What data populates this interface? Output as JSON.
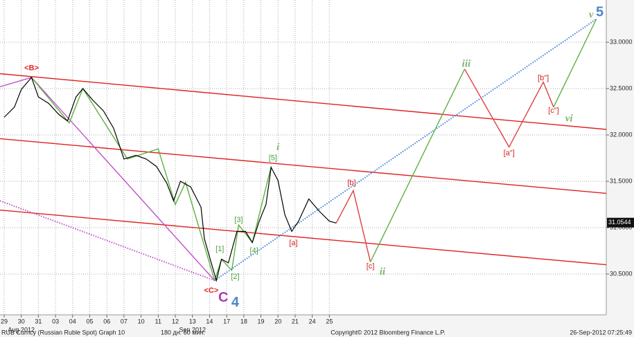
{
  "chart_data": {
    "type": "line",
    "xlim": [
      -0.243,
      35.18
    ],
    "ylim": [
      30.06,
      33.455
    ],
    "grid": true,
    "xticks": [
      {
        "value": 0,
        "label": "29"
      },
      {
        "value": 1,
        "label": "30"
      },
      {
        "value": 2,
        "label": "31"
      },
      {
        "value": 3,
        "label": "03"
      },
      {
        "value": 4,
        "label": "04"
      },
      {
        "value": 5,
        "label": "05"
      },
      {
        "value": 6,
        "label": "06"
      },
      {
        "value": 7,
        "label": "07"
      },
      {
        "value": 8,
        "label": "10"
      },
      {
        "value": 9,
        "label": "11"
      },
      {
        "value": 10,
        "label": "12"
      },
      {
        "value": 11,
        "label": "13"
      },
      {
        "value": 12,
        "label": "14"
      },
      {
        "value": 13,
        "label": "17"
      },
      {
        "value": 14,
        "label": "18"
      },
      {
        "value": 15,
        "label": "19"
      },
      {
        "value": 16,
        "label": "20"
      },
      {
        "value": 17,
        "label": "21"
      },
      {
        "value": 18,
        "label": "24"
      },
      {
        "value": 19,
        "label": "25"
      }
    ],
    "month_labels": [
      {
        "value": 1,
        "label": "Aug 2012"
      },
      {
        "value": 11,
        "label": "Sep 2012"
      }
    ],
    "yticks": [
      {
        "value": 30.5,
        "label": "30.5000"
      },
      {
        "value": 31,
        "label": "31.0000"
      },
      {
        "value": 31.5,
        "label": "31.5000"
      },
      {
        "value": 32,
        "label": "32.0000"
      },
      {
        "value": 32.5,
        "label": "32.5000"
      },
      {
        "value": 33,
        "label": "33.0000"
      }
    ],
    "last_price": 31.0544,
    "series": [
      {
        "color": "#000000",
        "x": [
          0,
          0.6,
          1.0,
          1.6,
          2.0,
          2.6,
          3.2,
          3.7,
          4.2,
          4.6,
          5.2,
          5.8,
          6.4,
          7.0,
          7.7,
          8.3,
          8.9,
          9.5,
          9.9,
          10.3,
          10.9,
          11.5,
          11.7,
          12.1,
          12.4,
          12.7,
          13.1,
          13.6,
          14.1,
          14.5,
          14.9,
          15.3,
          15.6,
          16.0,
          16.4,
          16.8,
          17.2,
          17.8,
          18.4,
          19.0,
          19.4
        ],
        "values": [
          32.19,
          32.3,
          32.49,
          32.62,
          32.41,
          32.34,
          32.22,
          32.15,
          32.41,
          32.5,
          32.37,
          32.26,
          32.07,
          31.74,
          31.78,
          31.74,
          31.66,
          31.48,
          31.29,
          31.5,
          31.44,
          31.22,
          30.88,
          30.62,
          30.43,
          30.66,
          30.62,
          30.96,
          30.96,
          30.84,
          31.07,
          31.25,
          31.65,
          31.51,
          31.14,
          30.96,
          31.07,
          31.31,
          31.18,
          31.07,
          31.05
        ]
      }
    ],
    "overlays": [
      {
        "color": "#e02020",
        "style": "solid",
        "x": [
          -0.243,
          35.18
        ],
        "y": [
          32.66,
          32.06
        ]
      },
      {
        "color": "#e02020",
        "style": "solid",
        "x": [
          -0.243,
          35.18
        ],
        "y": [
          31.96,
          31.37
        ]
      },
      {
        "color": "#e02020",
        "style": "solid",
        "x": [
          -0.243,
          35.18
        ],
        "y": [
          31.19,
          30.6
        ]
      },
      {
        "color": "#c050c8",
        "style": "solid",
        "x": [
          -0.243,
          1.6,
          12.3
        ],
        "y": [
          32.52,
          32.62,
          30.43
        ]
      },
      {
        "color": "#c050c8",
        "style": "dotted",
        "x": [
          -0.243,
          12.3
        ],
        "y": [
          31.29,
          30.43
        ]
      },
      {
        "color": "#3c7fd8",
        "style": "dotted",
        "x": [
          12.3,
          34.6
        ],
        "y": [
          30.43,
          33.25
        ]
      },
      {
        "color": "#5cb040",
        "style": "solid",
        "x": [
          1.6,
          3.8,
          4.6,
          7.2,
          9.0,
          10.0,
          10.6,
          12.3
        ],
        "y": [
          32.62,
          32.13,
          32.5,
          31.74,
          31.85,
          31.25,
          31.49,
          30.43
        ]
      },
      {
        "color": "#5cb040",
        "style": "solid",
        "x": [
          12.3,
          12.7,
          13.3,
          13.7,
          14.5,
          15.6
        ],
        "y": [
          30.43,
          30.66,
          30.54,
          31.03,
          30.84,
          31.66
        ]
      },
      {
        "color": "#e04040",
        "style": "solid",
        "x": [
          19.4,
          20.4,
          21.4
        ],
        "y": [
          31.05,
          31.4,
          30.63
        ]
      },
      {
        "color": "#5cb040",
        "style": "solid",
        "x": [
          21.4,
          26.9
        ],
        "y": [
          30.63,
          32.71
        ]
      },
      {
        "color": "#e04040",
        "style": "solid",
        "x": [
          26.9,
          29.5,
          31.5,
          32.1
        ],
        "y": [
          32.71,
          31.87,
          32.57,
          32.3
        ]
      },
      {
        "color": "#5cb040",
        "style": "solid",
        "x": [
          32.1,
          34.6
        ],
        "y": [
          32.3,
          33.25
        ]
      }
    ],
    "annotations": [
      {
        "text": "<B>",
        "x": 1.6,
        "y": 32.72,
        "color": "#e02020",
        "style": "bold"
      },
      {
        "text": "<C>",
        "x": 12.1,
        "y": 30.32,
        "color": "#e02020",
        "style": "bold"
      },
      {
        "text": "C",
        "x": 12.8,
        "y": 30.24,
        "color": "#b03cb0",
        "style": "bold-large"
      },
      {
        "text": "4",
        "x": 13.5,
        "y": 30.19,
        "color": "#4a86c8",
        "style": "bold-large"
      },
      {
        "text": "i",
        "x": 16.0,
        "y": 31.86,
        "color": "#7fb56b",
        "style": "italic"
      },
      {
        "text": "[5]",
        "x": 15.7,
        "y": 31.75,
        "color": "#4aa040",
        "style": "plain"
      },
      {
        "text": "[1]",
        "x": 12.6,
        "y": 30.77,
        "color": "#4aa040",
        "style": "plain"
      },
      {
        "text": "[2]",
        "x": 13.5,
        "y": 30.47,
        "color": "#4aa040",
        "style": "plain"
      },
      {
        "text": "[3]",
        "x": 13.7,
        "y": 31.08,
        "color": "#4aa040",
        "style": "plain"
      },
      {
        "text": "[4]",
        "x": 14.6,
        "y": 30.75,
        "color": "#4aa040",
        "style": "plain"
      },
      {
        "text": "[a]",
        "x": 16.9,
        "y": 30.83,
        "color": "#d42020",
        "style": "plain"
      },
      {
        "text": "[b]",
        "x": 20.3,
        "y": 31.48,
        "color": "#d42020",
        "style": "plain"
      },
      {
        "text": "[c]",
        "x": 21.4,
        "y": 30.58,
        "color": "#d42020",
        "style": "plain"
      },
      {
        "text": "ii",
        "x": 22.1,
        "y": 30.52,
        "color": "#7fb56b",
        "style": "italic"
      },
      {
        "text": "iii",
        "x": 27.0,
        "y": 32.76,
        "color": "#7fb56b",
        "style": "italic"
      },
      {
        "text": "[a\"]",
        "x": 29.5,
        "y": 31.8,
        "color": "#d42020",
        "style": "plain"
      },
      {
        "text": "[b\"]",
        "x": 31.5,
        "y": 32.61,
        "color": "#d42020",
        "style": "plain"
      },
      {
        "text": "[c\"]",
        "x": 32.1,
        "y": 32.26,
        "color": "#d42020",
        "style": "plain"
      },
      {
        "text": "vi",
        "x": 33.0,
        "y": 32.17,
        "color": "#7fb56b",
        "style": "italic"
      },
      {
        "text": "v",
        "x": 34.3,
        "y": 33.29,
        "color": "#7fb56b",
        "style": "italic"
      },
      {
        "text": "5",
        "x": 34.8,
        "y": 33.32,
        "color": "#4a86c8",
        "style": "bold-large"
      }
    ]
  },
  "footer": {
    "left": "RUB Curncy (Russian Ruble Spot) Graph 10",
    "middle": "180 дн. 60 мин.",
    "center": "Copyright© 2012 Bloomberg Finance L.P.",
    "right": "26-Sep-2012 07:25:49"
  }
}
